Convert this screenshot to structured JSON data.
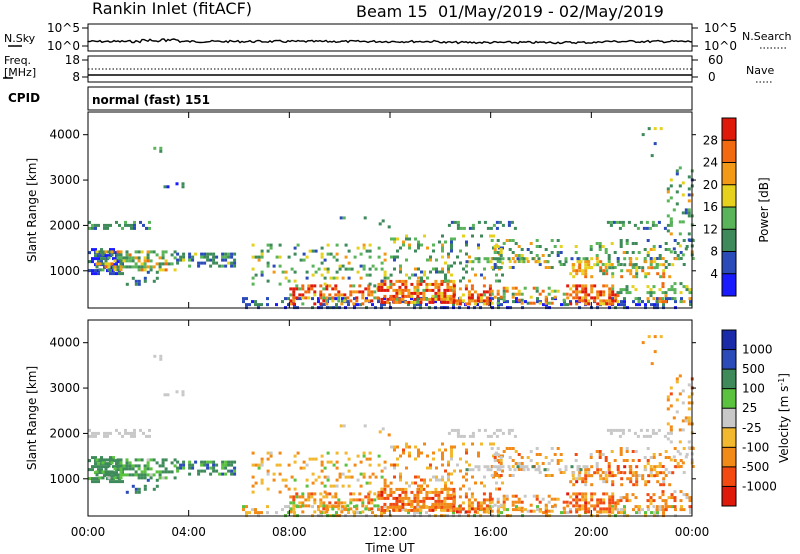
{
  "header": {
    "station": "Rankin Inlet (fitACF)",
    "beam": "Beam 15",
    "dates": "01/May/2019 - 02/May/2019"
  },
  "noise_panel": {
    "left_label": "N.Sky",
    "right_label": "N.Search",
    "left_ticks": [
      "10^5",
      "10^0"
    ],
    "right_ticks": [
      "10^5",
      "10^0"
    ]
  },
  "freq_panel": {
    "left_label_1": "Freq.",
    "left_label_2": "[MHz]",
    "right_label": "Nave",
    "left_ticks": [
      "18",
      "8"
    ],
    "right_ticks": [
      "60",
      "0"
    ]
  },
  "cpid": {
    "label": "CPID",
    "value": "normal (fast) 151"
  },
  "colors": {
    "power": [
      "#1a1aff",
      "#2a4bb8",
      "#3e8a5a",
      "#5ab55a",
      "#e6d21e",
      "#f29a18",
      "#f26a10",
      "#e01a0a"
    ],
    "velocity": [
      "#e01a0a",
      "#f24a10",
      "#f28a18",
      "#f2b830",
      "#c8c8c8",
      "#5ac23e",
      "#3e8a5a",
      "#2a4bb8",
      "#1a2aa8"
    ]
  },
  "chart_data": [
    {
      "type": "heatmap",
      "name": "power",
      "ylabel": "Slant Range [km]",
      "ylim": [
        180,
        4500
      ],
      "yticks": [
        "1000",
        "2000",
        "3000",
        "4000"
      ],
      "ytick_values": [
        1000,
        2000,
        3000,
        4000
      ],
      "xlim": [
        0,
        24
      ],
      "colorbar_label": "Power [dB]",
      "colorbar_ticks": [
        "4",
        "8",
        "12",
        "16",
        "20",
        "24",
        "28"
      ],
      "colorbar_values": [
        4,
        8,
        12,
        16,
        20,
        24,
        28
      ],
      "colorbar_range": [
        0,
        32
      ]
    },
    {
      "type": "heatmap",
      "name": "velocity",
      "ylabel": "Slant Range [km]",
      "ylim": [
        180,
        4500
      ],
      "yticks": [
        "1000",
        "2000",
        "3000",
        "4000"
      ],
      "ytick_values": [
        1000,
        2000,
        3000,
        4000
      ],
      "xlim": [
        0,
        24
      ],
      "colorbar_label": "Velocity [m s",
      "colorbar_label_sup": "-1",
      "colorbar_label_end": "]",
      "colorbar_ticks": [
        "1000",
        "500",
        "100",
        "25",
        "-25",
        "-100",
        "-500",
        "-1000"
      ]
    }
  ],
  "x_axis": {
    "label": "Time UT",
    "ticks": [
      "00:00",
      "04:00",
      "08:00",
      "12:00",
      "16:00",
      "20:00",
      "00:00"
    ],
    "tick_values": [
      0,
      4,
      8,
      12,
      16,
      20,
      24
    ]
  }
}
